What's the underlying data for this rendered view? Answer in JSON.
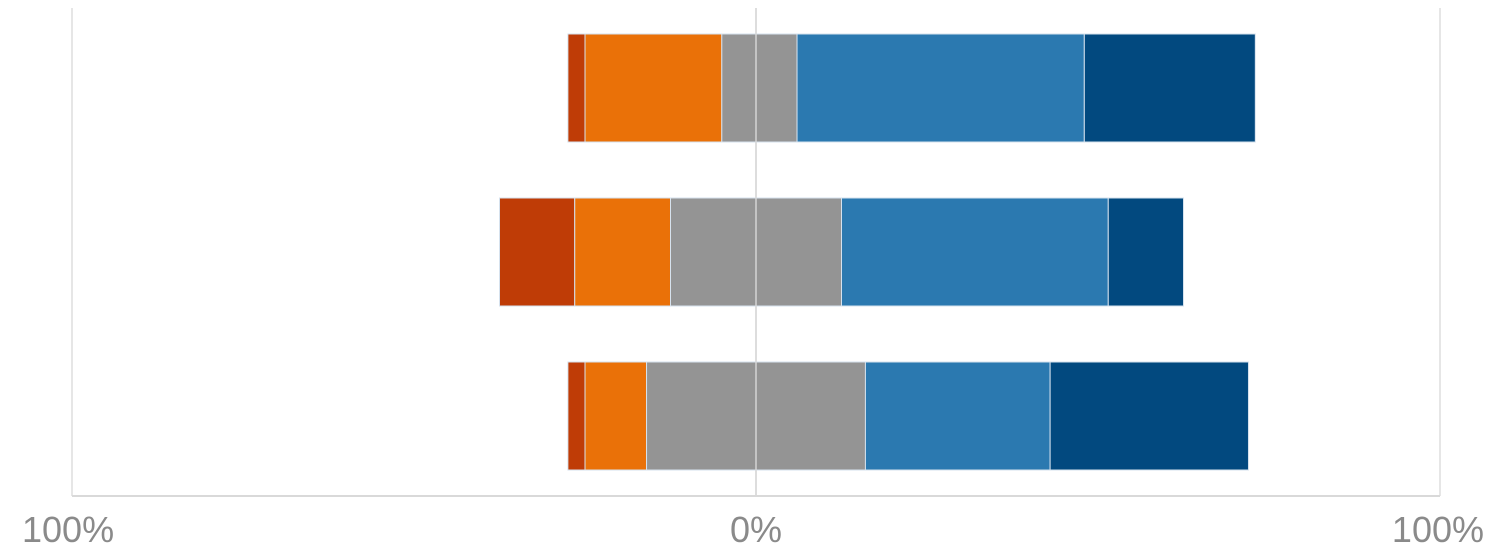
{
  "chart_data": {
    "type": "bar",
    "orientation": "horizontal",
    "stacked": "diverging",
    "xlim": [
      -100,
      100
    ],
    "x_tick_labels": [
      "100%",
      "0%",
      "100%"
    ],
    "grid": true,
    "legend": "none",
    "title": "",
    "xlabel": "",
    "ylabel": "",
    "categories": [
      "",
      "",
      ""
    ],
    "series": [
      {
        "values": [
          2.5,
          11,
          2.5
        ],
        "color": "#bf3c06"
      },
      {
        "values": [
          20,
          14,
          9
        ],
        "color": "#ea7108"
      },
      {
        "values": [
          11,
          25,
          32
        ],
        "color": "#949494"
      },
      {
        "values": [
          42,
          39,
          27
        ],
        "color": "#2b79b0"
      },
      {
        "values": [
          25,
          11,
          29
        ],
        "color": "#02497f"
      }
    ],
    "neutral_series_index": 2,
    "bar_starts": [
      -27.5,
      -37.5,
      -27.5
    ]
  },
  "colors": {
    "grid": "#e6e6e6",
    "axis": "#d9d9d9",
    "tick_text": "#8a8a8a",
    "bar_edge": "#d6e2ee"
  }
}
